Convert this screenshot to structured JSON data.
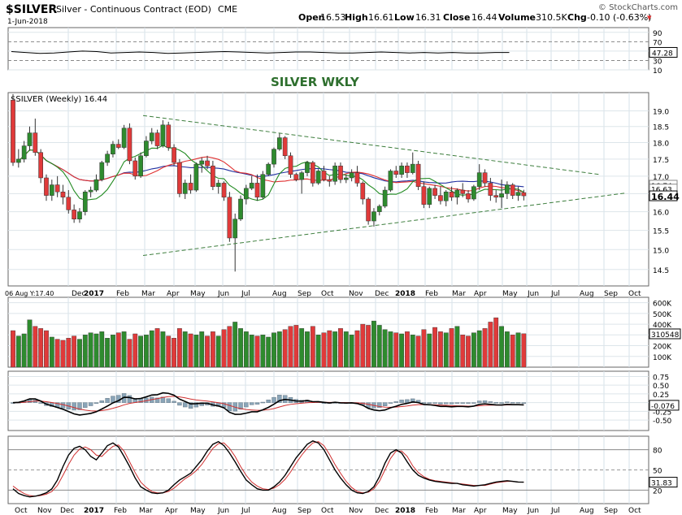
{
  "header": {
    "symbol": "$SILVER",
    "description": "Silver - Continuous Contract (EOD)",
    "exchange": "CME",
    "date": "1-Jun-2018",
    "open_label": "Open",
    "open": "16.53",
    "high_label": "High",
    "high": "16.61",
    "low_label": "Low",
    "low": "16.31",
    "close_label": "Close",
    "close": "16.44",
    "volume_label": "Volume",
    "volume": "310.5K",
    "chg_label": "Chg",
    "chg": "-0.10 (-0.63%)",
    "chg_arrow": "▾",
    "watermark": "© StockCharts.com"
  },
  "colors": {
    "up": "#2e8b2e",
    "down": "#e03a3a",
    "ma_fast": "#228b22",
    "ma_mid": "#e03030",
    "ma_slow": "#1f2f9f",
    "trend": "#3c7d3c",
    "label": "#2e6f2e",
    "hist": "#8aa5b8"
  },
  "chart_data": [
    {
      "panel": "rsi",
      "type": "line",
      "ylim": [
        10,
        100
      ],
      "ticks": [
        "90",
        "70",
        "50",
        "30",
        "10"
      ],
      "current_value": "47.28",
      "values": [
        49,
        47,
        45,
        46,
        48,
        50,
        49,
        46,
        47,
        48,
        47,
        45,
        46,
        47,
        48,
        49,
        48,
        47,
        46,
        47,
        48,
        48,
        47,
        46,
        46,
        47,
        48,
        47,
        46,
        47,
        46,
        47,
        46,
        46,
        47,
        47
      ]
    },
    {
      "panel": "price",
      "type": "candlestick",
      "title": "SILVER WKLY",
      "legend": "$SILVER (Weekly) 16.44",
      "scale": "log",
      "ylim": [
        14.1,
        19.6
      ],
      "ticks": [
        "19.0",
        "18.5",
        "18.0",
        "17.5",
        "17.0",
        "16.5",
        "16.0",
        "15.5",
        "15.0",
        "14.5"
      ],
      "current_value": "16.44",
      "ma_labels": [
        "16.74",
        "16.63"
      ],
      "x_start_label": "06 Aug Y:17.40",
      "x_labels": [
        "Dec",
        "2017",
        "Feb",
        "Mar",
        "Apr",
        "May",
        "Jun",
        "Jul",
        "Aug",
        "Sep",
        "Oct",
        "Nov",
        "Dec",
        "2018",
        "Feb",
        "Mar",
        "Apr",
        "May",
        "Jun",
        "Jul",
        "Aug",
        "Sep",
        "Oct"
      ],
      "candles": [
        {
          "o": 19.35,
          "h": 19.55,
          "l": 17.3,
          "c": 17.4
        },
        {
          "o": 17.4,
          "h": 17.8,
          "l": 17.25,
          "c": 17.5
        },
        {
          "o": 17.5,
          "h": 18.05,
          "l": 17.4,
          "c": 17.9
        },
        {
          "o": 17.9,
          "h": 18.5,
          "l": 17.75,
          "c": 18.3
        },
        {
          "o": 18.3,
          "h": 18.75,
          "l": 17.6,
          "c": 17.7
        },
        {
          "o": 17.7,
          "h": 17.8,
          "l": 16.8,
          "c": 16.95
        },
        {
          "o": 16.95,
          "h": 17.05,
          "l": 16.3,
          "c": 16.45
        },
        {
          "o": 16.45,
          "h": 16.9,
          "l": 16.3,
          "c": 16.75
        },
        {
          "o": 16.75,
          "h": 17.0,
          "l": 16.4,
          "c": 16.55
        },
        {
          "o": 16.55,
          "h": 16.75,
          "l": 16.2,
          "c": 16.4
        },
        {
          "o": 16.4,
          "h": 16.6,
          "l": 15.95,
          "c": 16.05
        },
        {
          "o": 16.05,
          "h": 16.2,
          "l": 15.7,
          "c": 15.8
        },
        {
          "o": 15.8,
          "h": 16.1,
          "l": 15.7,
          "c": 16.0
        },
        {
          "o": 16.0,
          "h": 16.6,
          "l": 15.9,
          "c": 16.55
        },
        {
          "o": 16.55,
          "h": 16.7,
          "l": 16.4,
          "c": 16.6
        },
        {
          "o": 16.6,
          "h": 17.05,
          "l": 16.55,
          "c": 16.9
        },
        {
          "o": 16.9,
          "h": 17.45,
          "l": 16.85,
          "c": 17.4
        },
        {
          "o": 17.4,
          "h": 17.75,
          "l": 17.3,
          "c": 17.65
        },
        {
          "o": 17.65,
          "h": 18.05,
          "l": 17.55,
          "c": 17.95
        },
        {
          "o": 17.95,
          "h": 18.1,
          "l": 17.8,
          "c": 17.85
        },
        {
          "o": 17.85,
          "h": 18.55,
          "l": 17.8,
          "c": 18.45
        },
        {
          "o": 18.45,
          "h": 18.6,
          "l": 17.35,
          "c": 17.45
        },
        {
          "o": 17.45,
          "h": 17.55,
          "l": 16.9,
          "c": 17.0
        },
        {
          "o": 17.0,
          "h": 17.7,
          "l": 16.95,
          "c": 17.6
        },
        {
          "o": 17.6,
          "h": 18.2,
          "l": 17.55,
          "c": 18.05
        },
        {
          "o": 18.05,
          "h": 18.45,
          "l": 17.95,
          "c": 18.3
        },
        {
          "o": 18.3,
          "h": 18.4,
          "l": 17.8,
          "c": 17.9
        },
        {
          "o": 17.9,
          "h": 18.7,
          "l": 17.85,
          "c": 18.55
        },
        {
          "o": 18.55,
          "h": 18.65,
          "l": 17.75,
          "c": 17.85
        },
        {
          "o": 17.85,
          "h": 17.95,
          "l": 17.3,
          "c": 17.4
        },
        {
          "o": 17.4,
          "h": 17.5,
          "l": 16.4,
          "c": 16.5
        },
        {
          "o": 16.5,
          "h": 16.9,
          "l": 16.35,
          "c": 16.8
        },
        {
          "o": 16.8,
          "h": 17.05,
          "l": 16.5,
          "c": 16.6
        },
        {
          "o": 16.6,
          "h": 17.4,
          "l": 16.55,
          "c": 17.35
        },
        {
          "o": 17.35,
          "h": 17.55,
          "l": 17.1,
          "c": 17.45
        },
        {
          "o": 17.45,
          "h": 17.6,
          "l": 17.2,
          "c": 17.3
        },
        {
          "o": 17.3,
          "h": 17.45,
          "l": 16.6,
          "c": 16.7
        },
        {
          "o": 16.7,
          "h": 16.9,
          "l": 16.5,
          "c": 16.8
        },
        {
          "o": 16.8,
          "h": 16.85,
          "l": 16.3,
          "c": 16.4
        },
        {
          "o": 16.4,
          "h": 16.55,
          "l": 15.2,
          "c": 15.3
        },
        {
          "o": 15.3,
          "h": 15.95,
          "l": 14.45,
          "c": 15.8
        },
        {
          "o": 15.8,
          "h": 16.45,
          "l": 15.75,
          "c": 16.35
        },
        {
          "o": 16.35,
          "h": 16.75,
          "l": 16.2,
          "c": 16.65
        },
        {
          "o": 16.65,
          "h": 17.0,
          "l": 16.6,
          "c": 16.8
        },
        {
          "o": 16.8,
          "h": 17.05,
          "l": 16.3,
          "c": 16.4
        },
        {
          "o": 16.4,
          "h": 17.15,
          "l": 16.35,
          "c": 17.05
        },
        {
          "o": 17.05,
          "h": 17.4,
          "l": 17.0,
          "c": 17.35
        },
        {
          "o": 17.35,
          "h": 17.85,
          "l": 17.25,
          "c": 17.8
        },
        {
          "o": 17.8,
          "h": 18.3,
          "l": 17.75,
          "c": 18.15
        },
        {
          "o": 18.15,
          "h": 18.2,
          "l": 17.5,
          "c": 17.6
        },
        {
          "o": 17.6,
          "h": 17.7,
          "l": 16.95,
          "c": 17.05
        },
        {
          "o": 17.05,
          "h": 17.1,
          "l": 16.85,
          "c": 16.9
        },
        {
          "o": 16.9,
          "h": 17.15,
          "l": 16.5,
          "c": 17.1
        },
        {
          "o": 17.1,
          "h": 17.45,
          "l": 17.0,
          "c": 17.4
        },
        {
          "o": 17.4,
          "h": 17.45,
          "l": 16.7,
          "c": 16.8
        },
        {
          "o": 16.8,
          "h": 17.2,
          "l": 16.75,
          "c": 17.15
        },
        {
          "o": 17.15,
          "h": 17.3,
          "l": 16.85,
          "c": 16.9
        },
        {
          "o": 16.9,
          "h": 17.0,
          "l": 16.7,
          "c": 16.85
        },
        {
          "o": 16.85,
          "h": 17.4,
          "l": 16.75,
          "c": 17.3
        },
        {
          "o": 17.3,
          "h": 17.4,
          "l": 16.8,
          "c": 16.9
        },
        {
          "o": 16.9,
          "h": 17.05,
          "l": 16.8,
          "c": 16.95
        },
        {
          "o": 16.95,
          "h": 17.2,
          "l": 16.85,
          "c": 17.1
        },
        {
          "o": 17.1,
          "h": 17.3,
          "l": 16.7,
          "c": 16.8
        },
        {
          "o": 16.8,
          "h": 16.85,
          "l": 16.2,
          "c": 16.35
        },
        {
          "o": 16.35,
          "h": 16.4,
          "l": 15.65,
          "c": 15.75
        },
        {
          "o": 15.75,
          "h": 16.1,
          "l": 15.6,
          "c": 16.0
        },
        {
          "o": 16.0,
          "h": 16.2,
          "l": 15.9,
          "c": 16.15
        },
        {
          "o": 16.15,
          "h": 16.7,
          "l": 16.1,
          "c": 16.6
        },
        {
          "o": 16.6,
          "h": 17.2,
          "l": 16.55,
          "c": 17.15
        },
        {
          "o": 17.15,
          "h": 17.3,
          "l": 16.95,
          "c": 17.05
        },
        {
          "o": 17.05,
          "h": 17.4,
          "l": 16.95,
          "c": 17.3
        },
        {
          "o": 17.3,
          "h": 17.4,
          "l": 16.95,
          "c": 17.1
        },
        {
          "o": 17.1,
          "h": 17.7,
          "l": 17.05,
          "c": 17.35
        },
        {
          "o": 17.35,
          "h": 17.45,
          "l": 16.6,
          "c": 16.7
        },
        {
          "o": 16.7,
          "h": 16.85,
          "l": 16.1,
          "c": 16.2
        },
        {
          "o": 16.2,
          "h": 16.7,
          "l": 16.1,
          "c": 16.65
        },
        {
          "o": 16.65,
          "h": 16.75,
          "l": 16.35,
          "c": 16.45
        },
        {
          "o": 16.45,
          "h": 16.7,
          "l": 16.2,
          "c": 16.3
        },
        {
          "o": 16.3,
          "h": 16.6,
          "l": 16.15,
          "c": 16.55
        },
        {
          "o": 16.55,
          "h": 16.7,
          "l": 16.3,
          "c": 16.4
        },
        {
          "o": 16.4,
          "h": 16.65,
          "l": 16.2,
          "c": 16.6
        },
        {
          "o": 16.6,
          "h": 16.8,
          "l": 16.4,
          "c": 16.5
        },
        {
          "o": 16.5,
          "h": 16.6,
          "l": 16.25,
          "c": 16.35
        },
        {
          "o": 16.35,
          "h": 16.75,
          "l": 16.3,
          "c": 16.7
        },
        {
          "o": 16.7,
          "h": 17.35,
          "l": 16.6,
          "c": 17.1
        },
        {
          "o": 17.1,
          "h": 17.2,
          "l": 16.7,
          "c": 16.8
        },
        {
          "o": 16.8,
          "h": 16.95,
          "l": 16.3,
          "c": 16.45
        },
        {
          "o": 16.45,
          "h": 16.6,
          "l": 16.25,
          "c": 16.4
        },
        {
          "o": 16.4,
          "h": 16.9,
          "l": 16.1,
          "c": 16.5
        },
        {
          "o": 16.5,
          "h": 16.85,
          "l": 16.35,
          "c": 16.75
        },
        {
          "o": 16.75,
          "h": 16.8,
          "l": 16.35,
          "c": 16.45
        },
        {
          "o": 16.45,
          "h": 16.7,
          "l": 16.3,
          "c": 16.54
        },
        {
          "o": 16.53,
          "h": 16.61,
          "l": 16.31,
          "c": 16.44
        }
      ],
      "trendlines": [
        {
          "from": [
            40,
            18.85
          ],
          "to": [
            196,
            17.05
          ]
        },
        {
          "from": [
            40,
            14.85
          ],
          "to": [
            205,
            16.52
          ]
        }
      ]
    },
    {
      "panel": "volume",
      "type": "bar",
      "ylim": [
        0,
        650
      ],
      "unit": "K",
      "ticks": [
        "600K",
        "500K",
        "400K",
        "300K",
        "200K",
        "100K"
      ],
      "current_value": "310548",
      "values": [
        340,
        290,
        310,
        440,
        380,
        360,
        340,
        280,
        260,
        250,
        270,
        290,
        260,
        300,
        320,
        310,
        330,
        270,
        300,
        320,
        330,
        260,
        310,
        290,
        300,
        340,
        360,
        330,
        290,
        270,
        360,
        330,
        310,
        300,
        330,
        290,
        330,
        290,
        350,
        380,
        420,
        360,
        330,
        300,
        290,
        300,
        280,
        320,
        330,
        350,
        380,
        390,
        360,
        330,
        380,
        300,
        320,
        340,
        330,
        360,
        330,
        300,
        340,
        400,
        390,
        430,
        390,
        350,
        330,
        320,
        310,
        330,
        300,
        290,
        350,
        310,
        370,
        330,
        320,
        360,
        380,
        300,
        290,
        320,
        340,
        360,
        420,
        460,
        380,
        330,
        300,
        320,
        311
      ]
    },
    {
      "panel": "macd",
      "type": "line",
      "ylim": [
        -0.8,
        0.9
      ],
      "ticks": [
        "0.75",
        "0.50",
        "0.25",
        "0.00",
        "-0.25",
        "-0.50"
      ],
      "current_value": "-0.076",
      "histogram_sign": [
        -1,
        -1,
        -1,
        -1,
        -1,
        1,
        1,
        1,
        1,
        1,
        -1,
        -1,
        -1,
        1,
        1,
        1,
        -1,
        1,
        -1
      ]
    },
    {
      "panel": "stochastic",
      "type": "line",
      "ylim": [
        0,
        100
      ],
      "ticks": [
        "80",
        "50",
        "20"
      ],
      "current_value": "31.83",
      "k": [
        22,
        15,
        12,
        10,
        11,
        13,
        16,
        22,
        35,
        55,
        72,
        82,
        85,
        80,
        70,
        65,
        75,
        86,
        90,
        84,
        70,
        55,
        38,
        25,
        20,
        16,
        15,
        16,
        20,
        28,
        35,
        40,
        45,
        55,
        65,
        78,
        88,
        92,
        86,
        75,
        62,
        48,
        35,
        28,
        22,
        20,
        20,
        25,
        32,
        42,
        55,
        68,
        78,
        88,
        93,
        90,
        80,
        65,
        50,
        38,
        28,
        20,
        16,
        15,
        18,
        25,
        40,
        60,
        75,
        80,
        75,
        62,
        50,
        42,
        38,
        35,
        33,
        32,
        31,
        30,
        30,
        28,
        27,
        26,
        27,
        28,
        30,
        32,
        33,
        34,
        33,
        32,
        31.8
      ],
      "d": [
        26,
        20,
        15,
        12,
        11,
        12,
        14,
        18,
        27,
        42,
        58,
        72,
        81,
        84,
        80,
        72,
        70,
        78,
        85,
        87,
        78,
        62,
        46,
        32,
        24,
        18,
        16,
        16,
        18,
        23,
        30,
        37,
        42,
        49,
        58,
        70,
        82,
        89,
        90,
        82,
        70,
        55,
        42,
        32,
        26,
        22,
        21,
        23,
        28,
        36,
        47,
        60,
        72,
        82,
        90,
        92,
        86,
        73,
        58,
        45,
        33,
        24,
        18,
        16,
        17,
        22,
        33,
        50,
        67,
        78,
        78,
        70,
        56,
        46,
        40,
        36,
        34,
        33,
        32,
        31,
        30,
        29,
        28,
        27,
        27,
        27,
        29,
        31,
        32,
        33,
        33,
        32,
        32
      ]
    }
  ]
}
